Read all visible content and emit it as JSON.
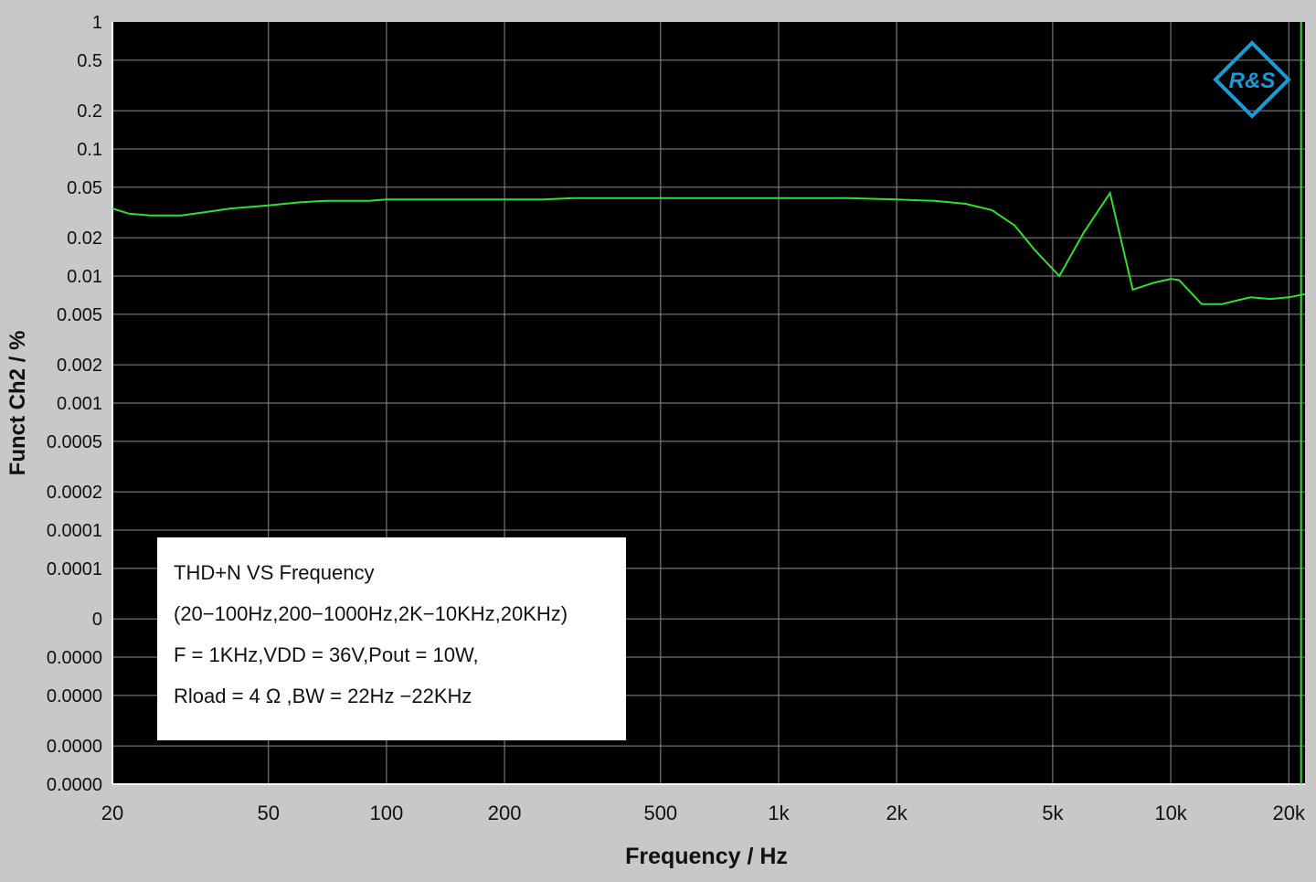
{
  "colors": {
    "page_background": "#c8c8c8",
    "plot_background": "#000000",
    "grid": "#8c8c8c",
    "series_line": "#33dd33",
    "marker_line": "#33dd33",
    "logo": "#1a9ad6",
    "annotation_box": "#ffffff",
    "text": "#111111"
  },
  "logo": {
    "name": "rohde-schwarz-logo",
    "text": "R&S"
  },
  "chart_data": {
    "type": "line",
    "title": "",
    "xlabel": "Frequency / Hz",
    "ylabel": "Funct Ch2 / %",
    "x_scale": "log",
    "xlim": [
      20,
      22000
    ],
    "x_ticks": [
      {
        "value": 20,
        "label": "20"
      },
      {
        "value": 50,
        "label": "50"
      },
      {
        "value": 100,
        "label": "100"
      },
      {
        "value": 200,
        "label": "200"
      },
      {
        "value": 500,
        "label": "500"
      },
      {
        "value": 1000,
        "label": "1k"
      },
      {
        "value": 2000,
        "label": "2k"
      },
      {
        "value": 5000,
        "label": "5k"
      },
      {
        "value": 10000,
        "label": "10k"
      },
      {
        "value": 20000,
        "label": "20k"
      }
    ],
    "y_scale": "log",
    "y_tick_labels": [
      "1",
      "0.5",
      "0.2",
      "0.1",
      "0.05",
      "0.02",
      "0.01",
      "0.005",
      "0.002",
      "0.001",
      "0.0005",
      "0.0002",
      "0.0001",
      "0.0001",
      "0",
      "0.0000",
      "0.0000",
      "0.0000",
      "0.0000"
    ],
    "y_tick_values": [
      1,
      0.5,
      0.2,
      0.1,
      0.05,
      0.02,
      0.01,
      0.005,
      0.002,
      0.001,
      0.0005,
      0.0002,
      0.0001,
      5e-05,
      2e-05,
      1e-05,
      5e-06,
      2e-06,
      1e-06
    ],
    "ylim": [
      1e-06,
      1
    ],
    "grid": true,
    "vertical_marker_x": 21500,
    "series": [
      {
        "x": [
          20,
          22,
          25,
          30,
          35,
          40,
          50,
          60,
          70,
          80,
          90,
          100,
          150,
          200,
          250,
          300,
          400,
          500,
          700,
          1000,
          1500,
          2000,
          2500,
          3000,
          3500,
          4000,
          4500,
          5200,
          6000,
          7000,
          8000,
          9000,
          10000,
          10500,
          12000,
          13500,
          15000,
          16000,
          18000,
          20000,
          22000
        ],
        "y": [
          0.034,
          0.031,
          0.03,
          0.03,
          0.032,
          0.034,
          0.036,
          0.038,
          0.039,
          0.039,
          0.039,
          0.04,
          0.04,
          0.04,
          0.04,
          0.041,
          0.041,
          0.041,
          0.041,
          0.041,
          0.041,
          0.04,
          0.039,
          0.037,
          0.033,
          0.025,
          0.016,
          0.01,
          0.022,
          0.045,
          0.0078,
          0.0088,
          0.0095,
          0.0093,
          0.006,
          0.006,
          0.0065,
          0.0068,
          0.0066,
          0.0068,
          0.0072
        ]
      }
    ],
    "annotation": {
      "lines": [
        "THD+N VS  Frequency",
        "(20−100Hz,200−1000Hz,2K−10KHz,20KHz)",
        "F = 1KHz,VDD = 36V,Pout = 10W,",
        "Rload = 4 Ω ,BW = 22Hz −22KHz"
      ]
    }
  }
}
